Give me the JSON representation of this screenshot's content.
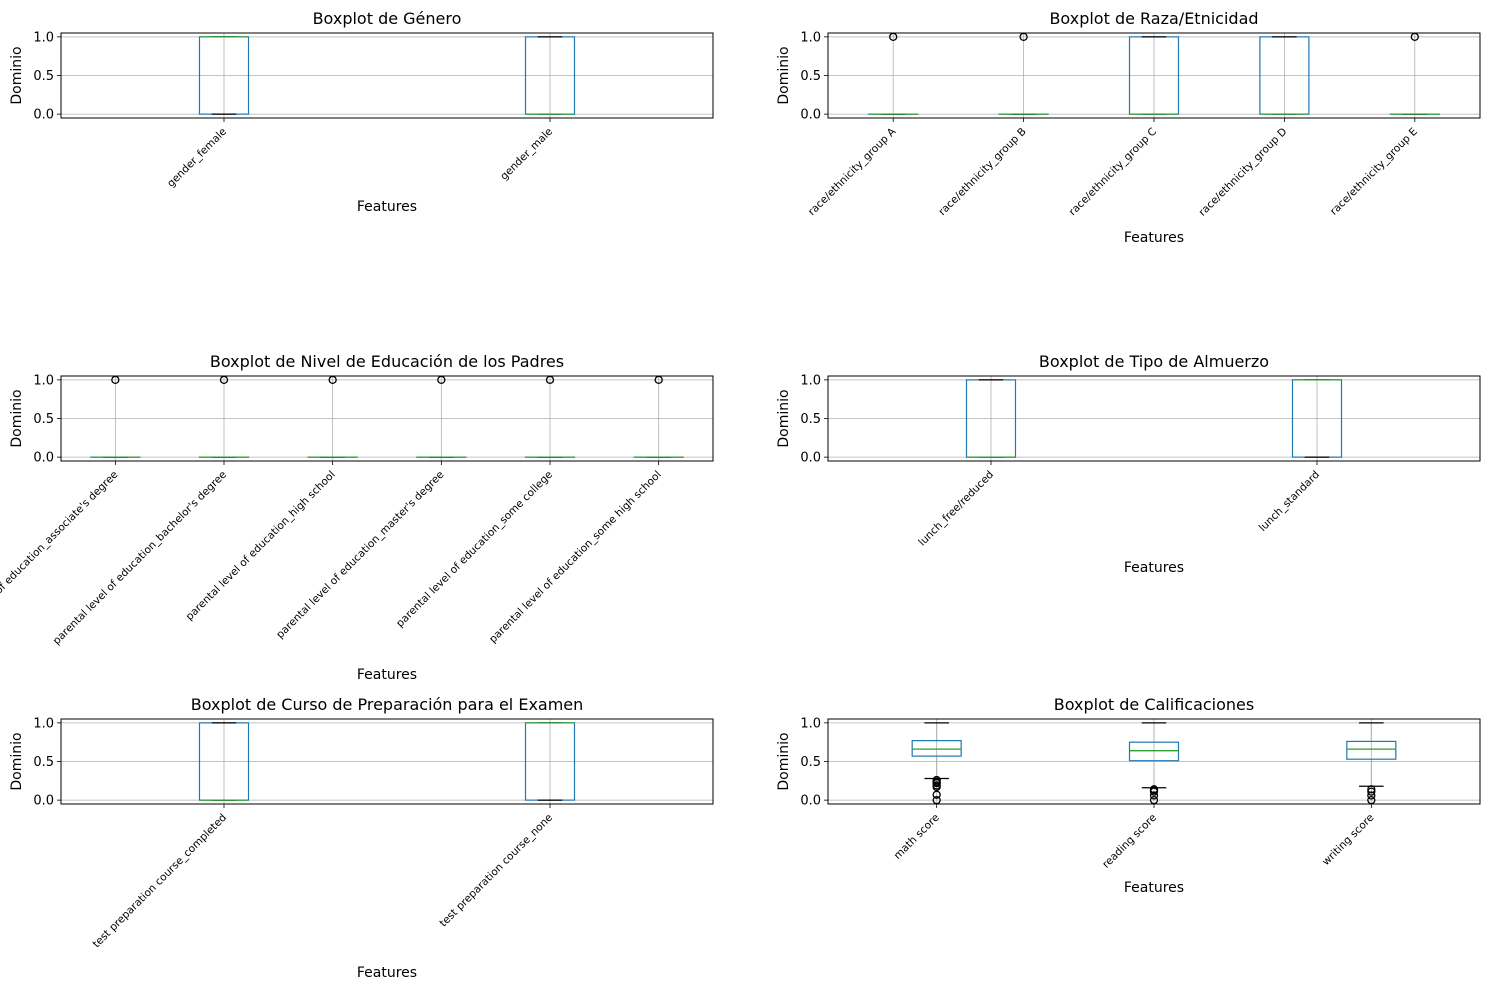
{
  "chart_data": [
    {
      "type": "boxplot",
      "title": "Boxplot de Género",
      "ylabel": "Dominio",
      "xlabel": "Features",
      "ylim": [
        -0.05,
        1.05
      ],
      "yticks": [
        "0.0",
        "0.5",
        "1.0"
      ],
      "grid": true,
      "series": [
        {
          "name": "gender_female",
          "q1": 0,
          "median": 1,
          "q3": 1,
          "whisker_low": 0,
          "whisker_high": 1,
          "fliers": []
        },
        {
          "name": "gender_male",
          "q1": 0,
          "median": 0,
          "q3": 1,
          "whisker_low": 0,
          "whisker_high": 1,
          "fliers": []
        }
      ]
    },
    {
      "type": "boxplot",
      "title": "Boxplot de Raza/Etnicidad",
      "ylabel": "Dominio",
      "xlabel": "Features",
      "ylim": [
        -0.05,
        1.05
      ],
      "yticks": [
        "0.0",
        "0.5",
        "1.0"
      ],
      "grid": true,
      "series": [
        {
          "name": "race/ethnicity_group A",
          "q1": 0,
          "median": 0,
          "q3": 0,
          "whisker_low": 0,
          "whisker_high": 0,
          "fliers": [
            1
          ]
        },
        {
          "name": "race/ethnicity_group B",
          "q1": 0,
          "median": 0,
          "q3": 0,
          "whisker_low": 0,
          "whisker_high": 0,
          "fliers": [
            1
          ]
        },
        {
          "name": "race/ethnicity_group C",
          "q1": 0,
          "median": 0,
          "q3": 1,
          "whisker_low": 0,
          "whisker_high": 1,
          "fliers": []
        },
        {
          "name": "race/ethnicity_group D",
          "q1": 0,
          "median": 0,
          "q3": 1,
          "whisker_low": 0,
          "whisker_high": 1,
          "fliers": []
        },
        {
          "name": "race/ethnicity_group E",
          "q1": 0,
          "median": 0,
          "q3": 0,
          "whisker_low": 0,
          "whisker_high": 0,
          "fliers": [
            1
          ]
        }
      ]
    },
    {
      "type": "boxplot",
      "title": "Boxplot de Nivel de Educación de los Padres",
      "ylabel": "Dominio",
      "xlabel": "Features",
      "ylim": [
        -0.05,
        1.05
      ],
      "yticks": [
        "0.0",
        "0.5",
        "1.0"
      ],
      "grid": true,
      "series": [
        {
          "name": "parental level of education_associate's degree",
          "q1": 0,
          "median": 0,
          "q3": 0,
          "whisker_low": 0,
          "whisker_high": 0,
          "fliers": [
            1
          ]
        },
        {
          "name": "parental level of education_bachelor's degree",
          "q1": 0,
          "median": 0,
          "q3": 0,
          "whisker_low": 0,
          "whisker_high": 0,
          "fliers": [
            1
          ]
        },
        {
          "name": "parental level of education_high school",
          "q1": 0,
          "median": 0,
          "q3": 0,
          "whisker_low": 0,
          "whisker_high": 0,
          "fliers": [
            1
          ]
        },
        {
          "name": "parental level of education_master's degree",
          "q1": 0,
          "median": 0,
          "q3": 0,
          "whisker_low": 0,
          "whisker_high": 0,
          "fliers": [
            1
          ]
        },
        {
          "name": "parental level of education_some college",
          "q1": 0,
          "median": 0,
          "q3": 0,
          "whisker_low": 0,
          "whisker_high": 0,
          "fliers": [
            1
          ]
        },
        {
          "name": "parental level of education_some high school",
          "q1": 0,
          "median": 0,
          "q3": 0,
          "whisker_low": 0,
          "whisker_high": 0,
          "fliers": [
            1
          ]
        }
      ]
    },
    {
      "type": "boxplot",
      "title": "Boxplot de Tipo de Almuerzo",
      "ylabel": "Dominio",
      "xlabel": "Features",
      "ylim": [
        -0.05,
        1.05
      ],
      "yticks": [
        "0.0",
        "0.5",
        "1.0"
      ],
      "grid": true,
      "series": [
        {
          "name": "lunch_free/reduced",
          "q1": 0,
          "median": 0,
          "q3": 1,
          "whisker_low": 0,
          "whisker_high": 1,
          "fliers": []
        },
        {
          "name": "lunch_standard",
          "q1": 0,
          "median": 1,
          "q3": 1,
          "whisker_low": 0,
          "whisker_high": 1,
          "fliers": []
        }
      ]
    },
    {
      "type": "boxplot",
      "title": "Boxplot de Curso de Preparación para el Examen",
      "ylabel": "Dominio",
      "xlabel": "Features",
      "ylim": [
        -0.05,
        1.05
      ],
      "yticks": [
        "0.0",
        "0.5",
        "1.0"
      ],
      "grid": true,
      "series": [
        {
          "name": "test preparation course_completed",
          "q1": 0,
          "median": 0,
          "q3": 1,
          "whisker_low": 0,
          "whisker_high": 1,
          "fliers": []
        },
        {
          "name": "test preparation course_none",
          "q1": 0,
          "median": 1,
          "q3": 1,
          "whisker_low": 0,
          "whisker_high": 1,
          "fliers": []
        }
      ]
    },
    {
      "type": "boxplot",
      "title": "Boxplot de Calificaciones",
      "ylabel": "Dominio",
      "xlabel": "Features",
      "ylim": [
        -0.05,
        1.05
      ],
      "yticks": [
        "0.0",
        "0.5",
        "1.0"
      ],
      "grid": true,
      "series": [
        {
          "name": "math score",
          "q1": 0.57,
          "median": 0.66,
          "q3": 0.77,
          "whisker_low": 0.28,
          "whisker_high": 1.0,
          "fliers": [
            0.0,
            0.07,
            0.17,
            0.19,
            0.22,
            0.23,
            0.24,
            0.26
          ]
        },
        {
          "name": "reading score",
          "q1": 0.51,
          "median": 0.64,
          "q3": 0.75,
          "whisker_low": 0.16,
          "whisker_high": 1.0,
          "fliers": [
            0.0,
            0.06,
            0.11,
            0.13,
            0.14
          ]
        },
        {
          "name": "writing score",
          "q1": 0.53,
          "median": 0.66,
          "q3": 0.76,
          "whisker_low": 0.18,
          "whisker_high": 1.0,
          "fliers": [
            0.0,
            0.06,
            0.11,
            0.14
          ]
        }
      ]
    }
  ]
}
